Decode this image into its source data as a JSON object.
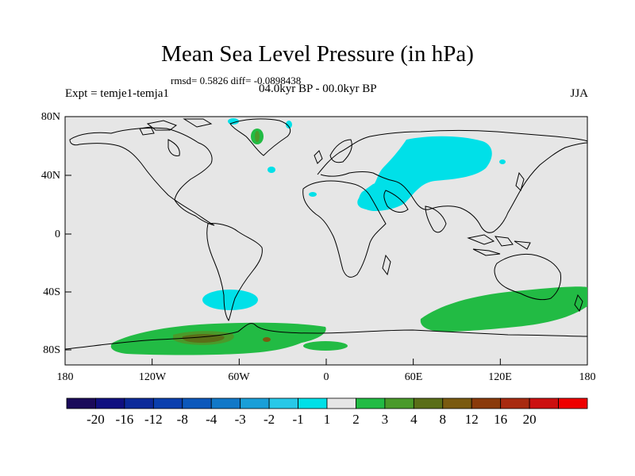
{
  "title": "Mean Sea Level Pressure (in hPa)",
  "stats": "rmsd= 0.5826 diff= -0.0898438",
  "experiment": "Expt = temje1-temja1",
  "period": "04.0kyr BP - 00.0kyr BP",
  "season": "JJA",
  "map": {
    "background_color": "#e6e6e6",
    "lat_ticks": [
      "80N",
      "40N",
      "0",
      "40S",
      "80S"
    ],
    "lon_ticks": [
      "180",
      "120W",
      "60W",
      "0",
      "60E",
      "120E",
      "180"
    ]
  },
  "colorbar": {
    "labels": [
      "-20",
      "-16",
      "-12",
      "-8",
      "-4",
      "-3",
      "-2",
      "-1",
      "1",
      "2",
      "3",
      "4",
      "8",
      "12",
      "16",
      "20"
    ],
    "colors": [
      "#1a0a5a",
      "#101080",
      "#0c2a9a",
      "#0a3fae",
      "#0c58bb",
      "#1178c8",
      "#1a9fd8",
      "#28c8e8",
      "#00e0e8",
      "#e6e6e6",
      "#22bb44",
      "#4a9a2a",
      "#5a6e18",
      "#7a5a10",
      "#8a3a0a",
      "#a82a10",
      "#cc1010",
      "#ee0000"
    ]
  }
}
